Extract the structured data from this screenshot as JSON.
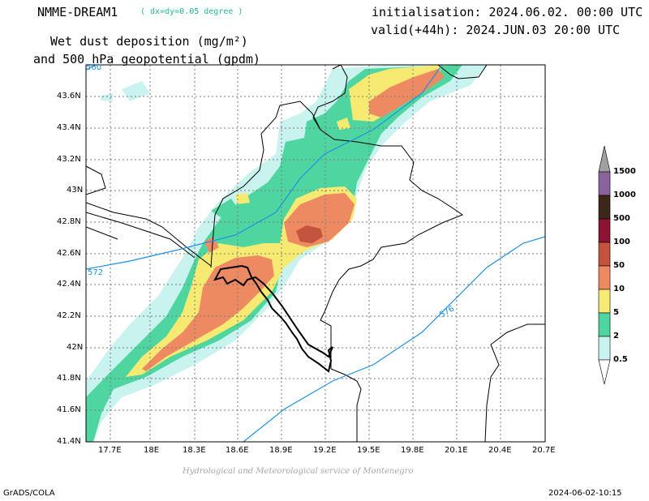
{
  "header": {
    "model": "NMME-DREAM1",
    "resolution": "( dx=dy=0.05 degree )",
    "init": "initialisation: 2024.06.02. 00:00 UTC",
    "valid": "valid(+44h): 2024.JUN.03 20:00 UTC",
    "title_line1": "Wet dust deposition (mg/m²)",
    "title_line2": "and 500 hPa geopotential (gpdm)"
  },
  "axes": {
    "lat_labels": [
      "43.6N",
      "43.4N",
      "43.2N",
      "43N",
      "42.8N",
      "42.6N",
      "42.4N",
      "42.2N",
      "42N",
      "41.8N",
      "41.6N",
      "41.4N"
    ],
    "lon_labels": [
      "17.7E",
      "18E",
      "18.3E",
      "18.6E",
      "18.9E",
      "19.2E",
      "19.5E",
      "19.8E",
      "20.1E",
      "20.4E",
      "20.7E"
    ]
  },
  "contours": {
    "labels": [
      "560",
      "572",
      "576"
    ],
    "color": "#1e90e6"
  },
  "legend": {
    "levels": [
      "1500",
      "1000",
      "500",
      "100",
      "50",
      "10",
      "5",
      "2",
      "0.5"
    ],
    "colors": {
      "0.5": "#c8f3ee",
      "2": "#4fd6a0",
      "5": "#f7ea72",
      "10": "#ee8a62",
      "50": "#c4533e",
      "100": "#8c1433",
      "500": "#3e2718",
      "1000": "#8a639c",
      "1500": "#a0a0a0"
    }
  },
  "footer": {
    "credit": "Hydrological and Meteorological service of Montenegro",
    "software": "GrADS/COLA",
    "timestamp": "2024-06-02-10:15"
  }
}
